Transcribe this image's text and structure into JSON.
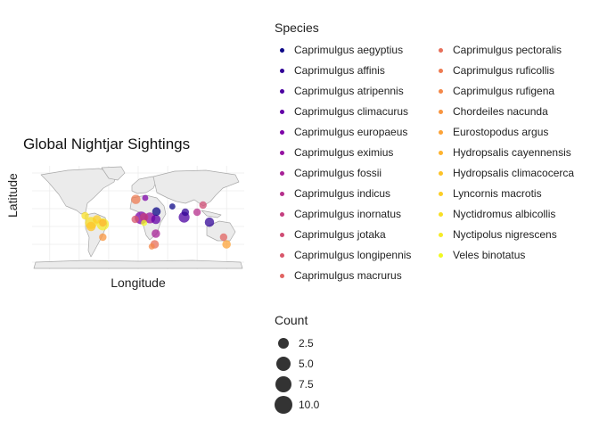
{
  "chart_data": {
    "type": "scatter",
    "title": "Global Nightjar Sightings",
    "xlabel": "Longitude",
    "ylabel": "Latitude",
    "xlim": [
      -180,
      180
    ],
    "ylim": [
      -60,
      85
    ],
    "grid": true,
    "legend_position": "right",
    "species_legend_title": "Species",
    "count_legend_title": "Count",
    "count_breaks": [
      "2.5",
      "5.0",
      "7.5",
      "10.0"
    ],
    "count_values": [
      2.5,
      5.0,
      7.5,
      10.0
    ],
    "species": [
      {
        "name": "Caprimulgus aegyptius",
        "color": "#0d0887"
      },
      {
        "name": "Caprimulgus affinis",
        "color": "#310597"
      },
      {
        "name": "Caprimulgus atripennis",
        "color": "#4c02a1"
      },
      {
        "name": "Caprimulgus climacurus",
        "color": "#6300a7"
      },
      {
        "name": "Caprimulgus europaeus",
        "color": "#7e03a8"
      },
      {
        "name": "Caprimulgus eximius",
        "color": "#9512a1"
      },
      {
        "name": "Caprimulgus fossii",
        "color": "#a72197"
      },
      {
        "name": "Caprimulgus indicus",
        "color": "#b52f8c"
      },
      {
        "name": "Caprimulgus inornatus",
        "color": "#c43e7f"
      },
      {
        "name": "Caprimulgus jotaka",
        "color": "#cf4c74"
      },
      {
        "name": "Caprimulgus longipennis",
        "color": "#d8576b"
      },
      {
        "name": "Caprimulgus macrurus",
        "color": "#e16462"
      },
      {
        "name": "Caprimulgus pectoralis",
        "color": "#e76f5a"
      },
      {
        "name": "Caprimulgus ruficollis",
        "color": "#ee7b51"
      },
      {
        "name": "Caprimulgus rufigena",
        "color": "#f48849"
      },
      {
        "name": "Chordeiles nacunda",
        "color": "#f89540"
      },
      {
        "name": "Eurostopodus argus",
        "color": "#fca338"
      },
      {
        "name": "Hydropsalis cayennensis",
        "color": "#feb32e"
      },
      {
        "name": "Hydropsalis climacocerca",
        "color": "#fdc328"
      },
      {
        "name": "Lyncornis macrotis",
        "color": "#fcce25"
      },
      {
        "name": "Nyctidromus albicollis",
        "color": "#f8df25"
      },
      {
        "name": "Nyctipolus nigrescens",
        "color": "#f5eb27"
      },
      {
        "name": "Veles binotatus",
        "color": "#f0f921"
      }
    ],
    "points": [
      {
        "species": "Caprimulgus aegyptius",
        "lon": 31,
        "lat": 21,
        "count": 3
      },
      {
        "species": "Caprimulgus aegyptius",
        "lon": 58,
        "lat": 28,
        "count": 1
      },
      {
        "species": "Caprimulgus affinis",
        "lon": 121,
        "lat": 6,
        "count": 4
      },
      {
        "species": "Caprimulgus affinis",
        "lon": 80,
        "lat": 20,
        "count": 2
      },
      {
        "species": "Caprimulgus atripennis",
        "lon": 78,
        "lat": 13,
        "count": 6
      },
      {
        "species": "Caprimulgus climacurus",
        "lon": 30,
        "lat": 10,
        "count": 4
      },
      {
        "species": "Caprimulgus europaeus",
        "lon": 5,
        "lat": 12,
        "count": 9
      },
      {
        "species": "Caprimulgus europaeus",
        "lon": 12,
        "lat": 40,
        "count": 1
      },
      {
        "species": "Caprimulgus eximius",
        "lon": 20,
        "lat": 12,
        "count": 6
      },
      {
        "species": "Caprimulgus fossii",
        "lon": 30,
        "lat": -10,
        "count": 3
      },
      {
        "species": "Caprimulgus indicus",
        "lon": 100,
        "lat": 20,
        "count": 2
      },
      {
        "species": "Caprimulgus inornatus",
        "lon": 10,
        "lat": 13,
        "count": 3
      },
      {
        "species": "Caprimulgus jotaka",
        "lon": 110,
        "lat": 30,
        "count": 2
      },
      {
        "species": "Caprimulgus longipennis",
        "lon": -5,
        "lat": 10,
        "count": 2
      },
      {
        "species": "Caprimulgus macrurus",
        "lon": 145,
        "lat": -15,
        "count": 2
      },
      {
        "species": "Caprimulgus pectoralis",
        "lon": 28,
        "lat": -25,
        "count": 3
      },
      {
        "species": "Caprimulgus ruficollis",
        "lon": -4,
        "lat": 38,
        "count": 4
      },
      {
        "species": "Caprimulgus rufigena",
        "lon": 23,
        "lat": -28,
        "count": 1
      },
      {
        "species": "Chordeiles nacunda",
        "lon": -60,
        "lat": -15,
        "count": 2
      },
      {
        "species": "Eurostopodus argus",
        "lon": 150,
        "lat": -25,
        "count": 3
      },
      {
        "species": "Hydropsalis cayennensis",
        "lon": -60,
        "lat": 5,
        "count": 2
      },
      {
        "species": "Hydropsalis climacocerca",
        "lon": -80,
        "lat": 0,
        "count": 4
      },
      {
        "species": "Lyncornis macrotis",
        "lon": -70,
        "lat": 10,
        "count": 3
      },
      {
        "species": "Nyctidromus albicollis",
        "lon": -80,
        "lat": 5,
        "count": 8
      },
      {
        "species": "Nyctidromus albicollis",
        "lon": -90,
        "lat": 15,
        "count": 2
      },
      {
        "species": "Nyctipolus nigrescens",
        "lon": -60,
        "lat": 3,
        "count": 8
      },
      {
        "species": "Veles binotatus",
        "lon": 10,
        "lat": 5,
        "count": 1
      }
    ]
  }
}
